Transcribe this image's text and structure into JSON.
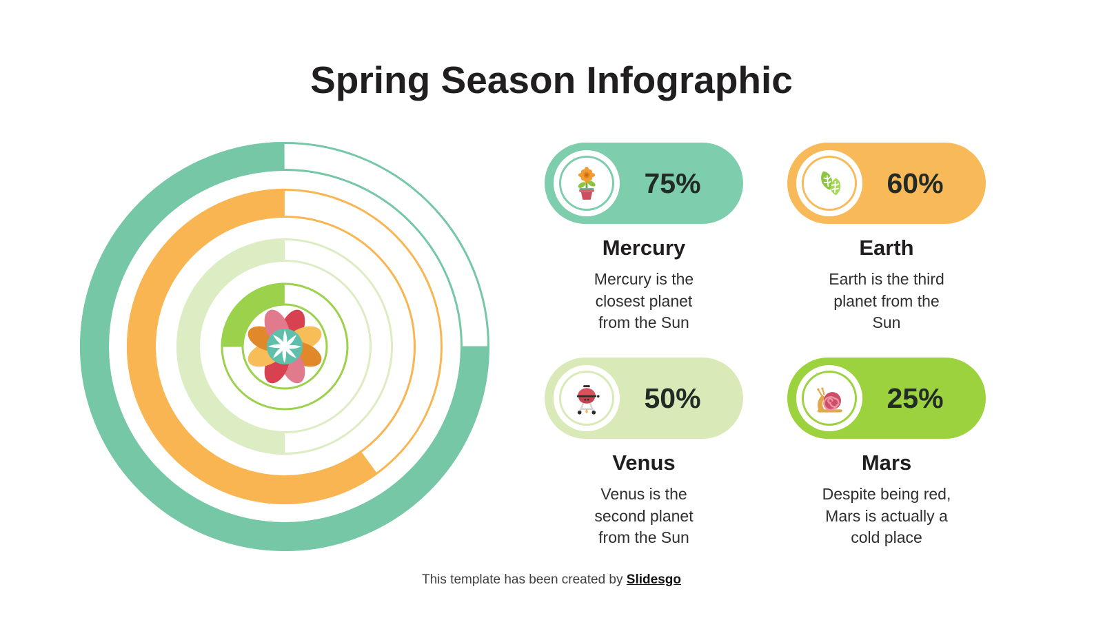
{
  "title": "Spring Season Infographic",
  "chart_data": {
    "type": "radial_progress_rings",
    "unit": "%",
    "note": "Four concentric rings, filled clockwise ending at 12 o'clock; empty portion drawn as thin band outline",
    "series": [
      {
        "name": "Mercury",
        "value": 75,
        "color": "#76c7a6"
      },
      {
        "name": "Earth",
        "value": 60,
        "color": "#f9b552"
      },
      {
        "name": "Venus",
        "value": 50,
        "color": "#dcecc3"
      },
      {
        "name": "Mars",
        "value": 25,
        "color": "#9bd14b"
      }
    ],
    "center_flower": {
      "petal_colors": [
        "#d8414f",
        "#f7bd59",
        "#e1882b",
        "#e27a8e",
        "#d8414f",
        "#f7bd59",
        "#e1882b",
        "#e27a8e"
      ],
      "center_color": "#5fbfab",
      "pinwheel_color": "#ffffff"
    }
  },
  "cards": [
    {
      "planet": "Mercury",
      "percent": "75%",
      "color": "#7ecdad",
      "icon": "flower-pot-icon",
      "desc_lines": [
        "Mercury is the",
        "closest planet",
        "from the Sun"
      ]
    },
    {
      "planet": "Earth",
      "percent": "60%",
      "color": "#f8ba59",
      "icon": "leaves-icon",
      "desc_lines": [
        "Earth is the third",
        "planet from the",
        "Sun"
      ]
    },
    {
      "planet": "Venus",
      "percent": "50%",
      "color": "#d9e9b8",
      "icon": "grill-icon",
      "desc_lines": [
        "Venus is the",
        "second planet",
        "from the Sun"
      ]
    },
    {
      "planet": "Mars",
      "percent": "25%",
      "color": "#9cd23e",
      "icon": "snail-icon",
      "desc_lines": [
        "Despite being red,",
        "Mars is actually a",
        "cold place"
      ]
    }
  ],
  "footer": {
    "prefix": "This template has been created by ",
    "link_label": "Slidesgo"
  },
  "colors": {
    "background": "#ffffff",
    "heading_text": "#211e1f",
    "body_text": "#2e2e2e",
    "percent_text": "#222b26",
    "footer_text": "#3f3f3f"
  }
}
